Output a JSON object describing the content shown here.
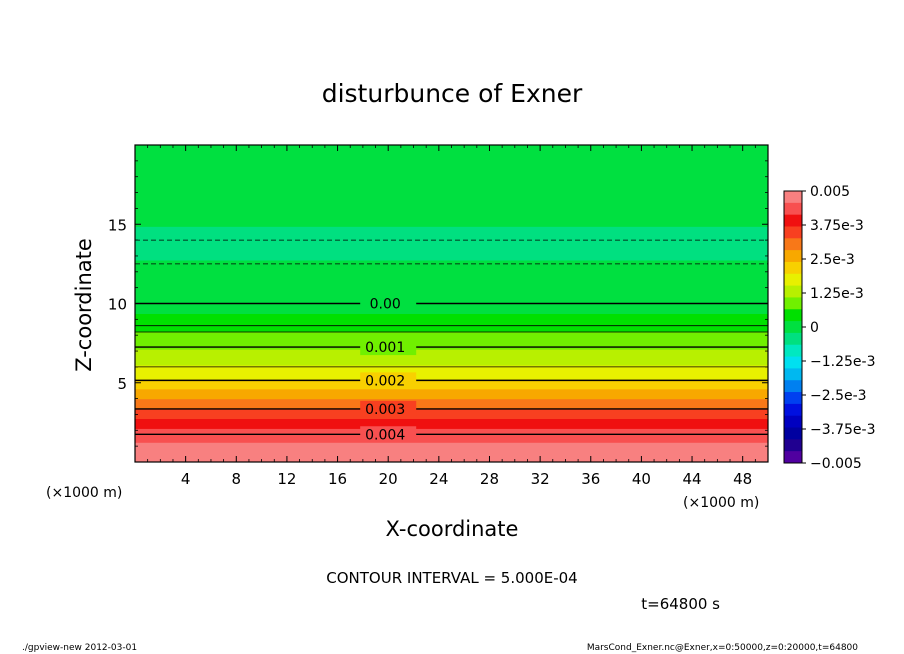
{
  "chart_data": {
    "type": "heatmap",
    "title": "disturbunce of Exner",
    "xlabel": "X-coordinate",
    "ylabel": "Z-coordinate",
    "x_unit_left": "(×1000 m)",
    "x_unit_right": "(×1000 m)",
    "xlim": [
      0,
      50
    ],
    "ylim": [
      0,
      20
    ],
    "xticks": [
      "4",
      "8",
      "12",
      "16",
      "20",
      "24",
      "28",
      "32",
      "36",
      "40",
      "44",
      "48"
    ],
    "xtick_values": [
      4,
      8,
      12,
      16,
      20,
      24,
      28,
      32,
      36,
      40,
      44,
      48
    ],
    "yticks": [
      "5",
      "10",
      "15"
    ],
    "ytick_values": [
      5,
      10,
      15
    ],
    "contour_interval_text": "CONTOUR INTERVAL = 5.000E-04",
    "time_text": "t=64800 s",
    "contour_labels": [
      {
        "text": "0.00",
        "z": 10.0
      },
      {
        "text": "0.001",
        "z": 7.25
      },
      {
        "text": "0.002",
        "z": 5.15
      },
      {
        "text": "0.003",
        "z": 3.35
      },
      {
        "text": "0.004",
        "z": 1.75
      }
    ],
    "dashed_contours_z": [
      12.5,
      14.0
    ],
    "solid_contours_z": [
      10.0,
      8.6,
      8.2,
      7.25,
      6.0,
      5.15,
      3.35,
      1.75
    ],
    "field_profile": [
      {
        "z": 0.0,
        "v": 0.005
      },
      {
        "z": 1.0,
        "v": 0.0047
      },
      {
        "z": 2.2,
        "v": 0.0041
      },
      {
        "z": 3.0,
        "v": 0.0035
      },
      {
        "z": 4.2,
        "v": 0.0027
      },
      {
        "z": 5.2,
        "v": 0.002
      },
      {
        "z": 6.2,
        "v": 0.0015
      },
      {
        "z": 7.3,
        "v": 0.001
      },
      {
        "z": 8.6,
        "v": 0.0005
      },
      {
        "z": 10.0,
        "v": 0.0
      },
      {
        "z": 12.5,
        "v": -0.0002
      },
      {
        "z": 14.0,
        "v": -0.0003
      },
      {
        "z": 15.6,
        "v": -0.00015
      },
      {
        "z": 20.0,
        "v": 0.0
      }
    ],
    "colorbar": {
      "min": -0.005,
      "max": 0.005,
      "labels": [
        "0.005",
        "3.75e-3",
        "2.5e-3",
        "1.25e-3",
        "0",
        "−1.25e-3",
        "−2.5e-3",
        "−3.75e-3",
        "−0.005"
      ],
      "label_values": [
        0.005,
        0.00375,
        0.0025,
        0.00125,
        0,
        -0.00125,
        -0.0025,
        -0.00375,
        -0.005
      ],
      "colors_high_to_low": [
        "#f88080",
        "#f85050",
        "#f01010",
        "#f84020",
        "#f87818",
        "#f8a800",
        "#f8d000",
        "#e8f000",
        "#b8f000",
        "#70f000",
        "#00e000",
        "#00e040",
        "#00e080",
        "#00e8c0",
        "#00e0f0",
        "#00b8f0",
        "#0080f0",
        "#0040f0",
        "#0010e0",
        "#0000c0",
        "#0000a0",
        "#200090",
        "#5000a0"
      ]
    },
    "grid": false
  },
  "footer": {
    "left": "./gpview-new   2012-03-01",
    "right": "MarsCond_Exner.nc@Exner,x=0:50000,z=0:20000,t=64800"
  }
}
